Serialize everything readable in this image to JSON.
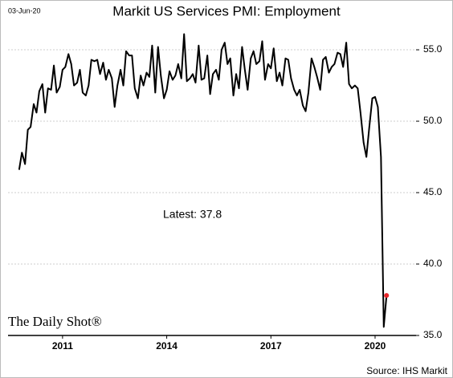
{
  "chart_data": {
    "type": "line",
    "date": "03-Jun-20",
    "title": "Markit US Services PMI: Employment",
    "annotation": "Latest:  37.8",
    "watermark": "The Daily Shot®",
    "source": "Source: IHS Markit",
    "x": [
      2009.75,
      2009.83,
      2009.92,
      2010,
      2010.08,
      2010.17,
      2010.25,
      2010.33,
      2010.42,
      2010.5,
      2010.58,
      2010.67,
      2010.75,
      2010.83,
      2010.92,
      2011,
      2011.08,
      2011.17,
      2011.25,
      2011.33,
      2011.42,
      2011.5,
      2011.58,
      2011.67,
      2011.75,
      2011.83,
      2011.92,
      2012,
      2012.08,
      2012.17,
      2012.25,
      2012.33,
      2012.42,
      2012.5,
      2012.58,
      2012.67,
      2012.75,
      2012.83,
      2012.92,
      2013,
      2013.08,
      2013.17,
      2013.25,
      2013.33,
      2013.42,
      2013.5,
      2013.58,
      2013.67,
      2013.75,
      2013.83,
      2013.92,
      2014,
      2014.08,
      2014.17,
      2014.25,
      2014.33,
      2014.42,
      2014.5,
      2014.58,
      2014.67,
      2014.75,
      2014.83,
      2014.92,
      2015,
      2015.08,
      2015.17,
      2015.25,
      2015.33,
      2015.42,
      2015.5,
      2015.58,
      2015.67,
      2015.75,
      2015.83,
      2015.92,
      2016,
      2016.08,
      2016.17,
      2016.25,
      2016.33,
      2016.42,
      2016.5,
      2016.58,
      2016.67,
      2016.75,
      2016.83,
      2016.92,
      2017,
      2017.08,
      2017.17,
      2017.25,
      2017.33,
      2017.42,
      2017.5,
      2017.58,
      2017.67,
      2017.75,
      2017.83,
      2017.92,
      2018,
      2018.08,
      2018.17,
      2018.25,
      2018.33,
      2018.42,
      2018.5,
      2018.58,
      2018.67,
      2018.75,
      2018.83,
      2018.92,
      2019,
      2019.08,
      2019.17,
      2019.25,
      2019.33,
      2019.42,
      2019.5,
      2019.58,
      2019.67,
      2019.75,
      2019.83,
      2019.92,
      2020,
      2020.08,
      2020.17,
      2020.25,
      2020.33
    ],
    "series": [
      {
        "name": "Employment",
        "color": "#000000",
        "marker_color": "#e8262a",
        "values": [
          46.6,
          47.8,
          47.0,
          49.4,
          49.6,
          51.2,
          50.6,
          52.1,
          52.6,
          50.6,
          52.3,
          52.2,
          53.9,
          52.0,
          52.4,
          53.6,
          53.8,
          54.7,
          54.0,
          52.5,
          52.7,
          53.6,
          52.0,
          51.8,
          52.5,
          54.3,
          54.2,
          54.3,
          53.3,
          54.1,
          52.9,
          53.6,
          53.0,
          51.0,
          52.5,
          53.6,
          52.5,
          54.9,
          54.6,
          54.6,
          52.3,
          51.6,
          53.2,
          52.5,
          53.4,
          53.1,
          55.3,
          52.0,
          55.2,
          53.2,
          51.6,
          52.2,
          53.5,
          52.9,
          53.2,
          54.0,
          53.0,
          56.1,
          52.8,
          53.0,
          53.3,
          52.7,
          55.3,
          52.9,
          53.0,
          54.6,
          51.9,
          53.3,
          53.6,
          52.9,
          55.0,
          55.5,
          54.0,
          54.4,
          51.8,
          53.3,
          52.3,
          55.2,
          53.6,
          52.2,
          54.4,
          54.9,
          54.0,
          54.2,
          55.6,
          52.9,
          54.0,
          53.7,
          55.1,
          52.8,
          53.4,
          52.5,
          54.4,
          54.3,
          53.0,
          52.2,
          51.8,
          52.2,
          51.1,
          50.7,
          52.0,
          54.4,
          53.8,
          53.1,
          52.2,
          54.3,
          54.5,
          53.4,
          53.8,
          54.0,
          54.8,
          54.7,
          53.8,
          55.5,
          52.6,
          52.3,
          52.5,
          52.3,
          50.6,
          48.5,
          47.5,
          49.5,
          51.6,
          51.7,
          51.0,
          47.5,
          35.6,
          37.8
        ]
      }
    ],
    "xlim": [
      2009.43,
      2021.18
    ],
    "xticks": [
      2011,
      2014,
      2017,
      2020
    ],
    "ylim": [
      35,
      56.8
    ],
    "yticks": [
      {
        "value": 35,
        "label": "35.0"
      },
      {
        "value": 40,
        "label": "40.0"
      },
      {
        "value": 45,
        "label": "45.0"
      },
      {
        "value": 50,
        "label": "50.0"
      },
      {
        "value": 55,
        "label": "55.0"
      }
    ],
    "grid": true
  }
}
